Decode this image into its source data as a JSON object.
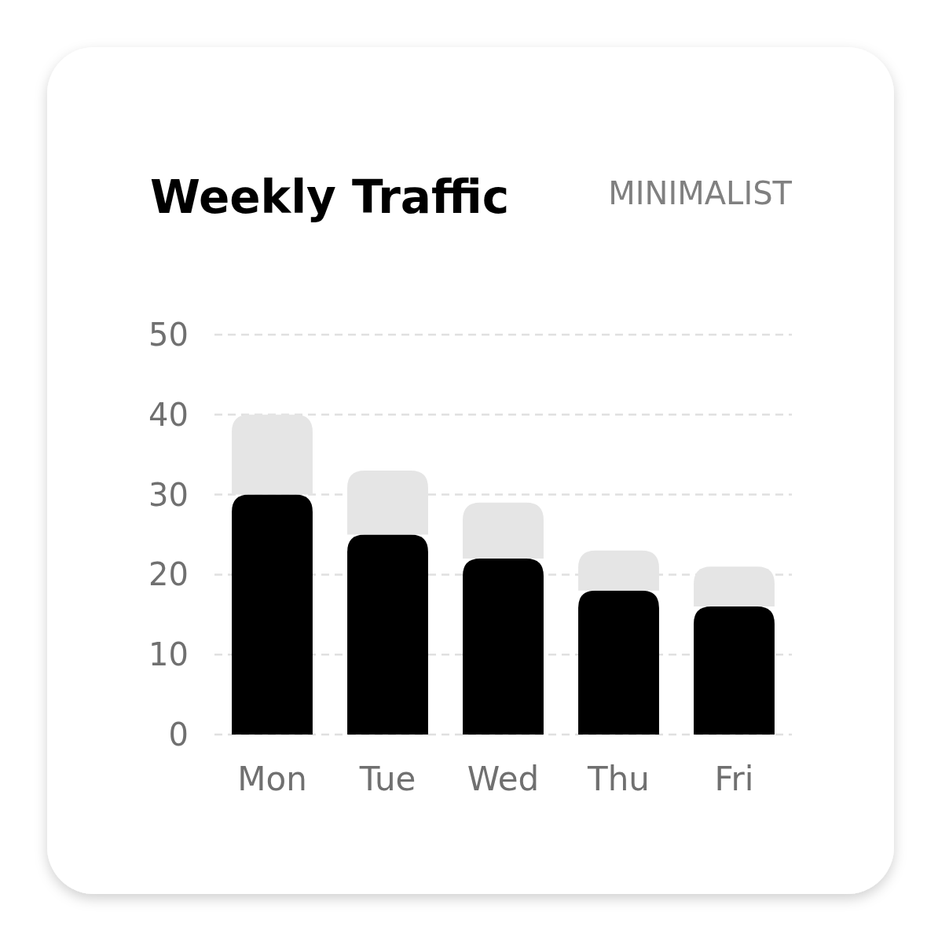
{
  "chart_data": {
    "type": "bar",
    "title": "Weekly Traffic",
    "subtitle": "MINIMALIST",
    "categories": [
      "Mon",
      "Tue",
      "Wed",
      "Thu",
      "Fri"
    ],
    "stacked": true,
    "series": [
      {
        "color": "#000000",
        "values": [
          30,
          25,
          22,
          18,
          16
        ]
      },
      {
        "color": "#e5e5e5",
        "values": [
          10,
          8,
          7,
          5,
          5
        ]
      }
    ],
    "ylim": [
      0,
      50
    ],
    "yticks": [
      0,
      10,
      20,
      30,
      40,
      50
    ],
    "grid": "y"
  }
}
